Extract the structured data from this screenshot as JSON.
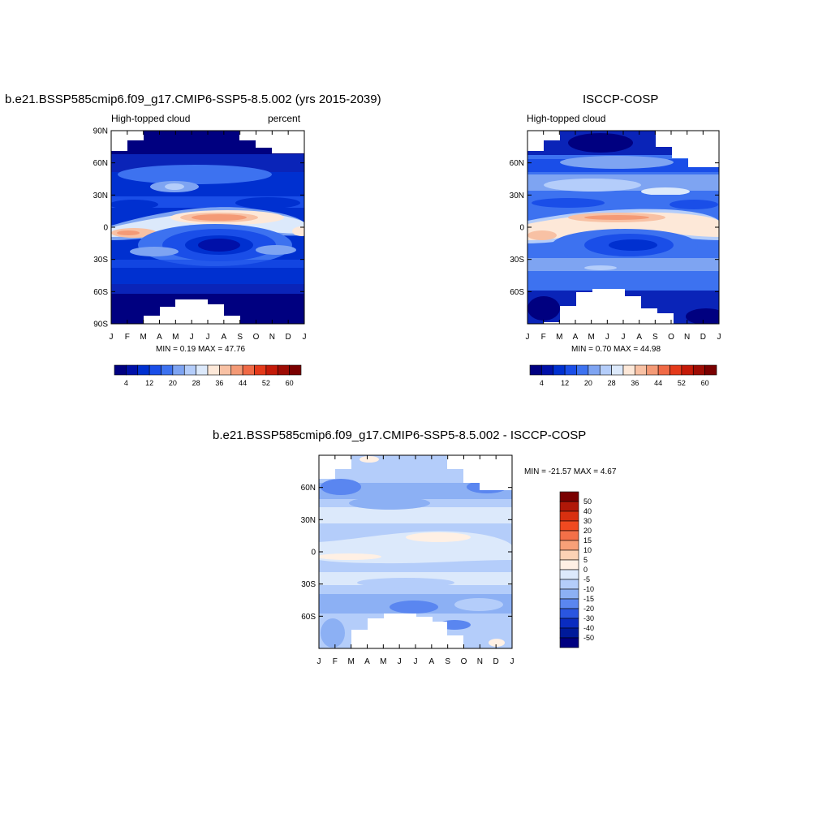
{
  "panels": [
    {
      "title": "b.e21.BSSP585cmip6.f09_g17.CMIP6-SSP5-8.5.002 (yrs 2015-2039)",
      "left_label": "High-topped cloud",
      "right_label": "percent",
      "stats": "MIN =   0.19 MAX =  47.76"
    },
    {
      "title": "ISCCP-COSP",
      "left_label": "High-topped cloud",
      "right_label": "",
      "stats": "MIN =   0.70 MAX =  44.98"
    },
    {
      "title": "b.e21.BSSP585cmip6.f09_g17.CMIP6-SSP5-8.5.002 - ISCCP-COSP",
      "left_label": "",
      "right_label": "",
      "stats": "MIN = -21.57 MAX =   4.67"
    }
  ],
  "chart_data": [
    {
      "type": "heatmap",
      "title": "b.e21.BSSP585cmip6.f09_g17.CMIP6-SSP5-8.5.002 (yrs 2015-2039)",
      "subtitle_left": "High-topped cloud",
      "subtitle_right": "percent",
      "x_ticks": [
        "J",
        "F",
        "M",
        "A",
        "M",
        "J",
        "J",
        "A",
        "S",
        "O",
        "N",
        "D",
        "J"
      ],
      "y_ticks": [
        "90N",
        "60N",
        "30N",
        "0",
        "30S",
        "60S",
        "90S"
      ],
      "ylim": [
        -90,
        90
      ],
      "colorbar_ticks": [
        "4",
        "12",
        "20",
        "28",
        "36",
        "44",
        "52",
        "60"
      ],
      "colors": [
        "#000080",
        "#0010a8",
        "#0030d0",
        "#1a4ee8",
        "#3d72f0",
        "#7ea4f2",
        "#b4cdfa",
        "#dce9fb",
        "#fde8d8",
        "#f8c1a4",
        "#f49a76",
        "#f06a46",
        "#e43a1a",
        "#c41a08",
        "#9e0c04",
        "#7a0000"
      ],
      "min": 0.19,
      "max": 47.76
    },
    {
      "type": "heatmap",
      "title": "ISCCP-COSP",
      "subtitle_left": "High-topped cloud",
      "x_ticks": [
        "J",
        "F",
        "M",
        "A",
        "M",
        "J",
        "J",
        "A",
        "S",
        "O",
        "N",
        "D",
        "J"
      ],
      "y_ticks": [
        "60N",
        "30N",
        "0",
        "30S",
        "60S"
      ],
      "colorbar_ticks": [
        "4",
        "12",
        "20",
        "28",
        "36",
        "44",
        "52",
        "60"
      ],
      "colors": [
        "#000080",
        "#0010a8",
        "#0030d0",
        "#1a4ee8",
        "#3d72f0",
        "#7ea4f2",
        "#b4cdfa",
        "#dce9fb",
        "#fde8d8",
        "#f8c1a4",
        "#f49a76",
        "#f06a46",
        "#e43a1a",
        "#c41a08",
        "#9e0c04",
        "#7a0000"
      ],
      "min": 0.7,
      "max": 44.98
    },
    {
      "type": "heatmap",
      "title": "b.e21.BSSP585cmip6.f09_g17.CMIP6-SSP5-8.5.002 - ISCCP-COSP",
      "x_ticks": [
        "J",
        "F",
        "M",
        "A",
        "M",
        "J",
        "J",
        "A",
        "S",
        "O",
        "N",
        "D",
        "J"
      ],
      "y_ticks": [
        "60N",
        "30N",
        "0",
        "30S",
        "60S"
      ],
      "colorbar_ticks": [
        "50",
        "40",
        "30",
        "20",
        "15",
        "10",
        "5",
        "0",
        "-5",
        "-10",
        "-15",
        "-20",
        "-30",
        "-40",
        "-50"
      ],
      "colors": [
        "#7a0000",
        "#b01808",
        "#d83010",
        "#f04a20",
        "#f47048",
        "#f8a078",
        "#fcd2b4",
        "#fff0e4",
        "#dce9fb",
        "#b4cdfa",
        "#8cb0f4",
        "#5a86f0",
        "#2a56e0",
        "#0a2cc0",
        "#001a9a",
        "#000080"
      ],
      "min": -21.57,
      "max": 4.67
    }
  ]
}
